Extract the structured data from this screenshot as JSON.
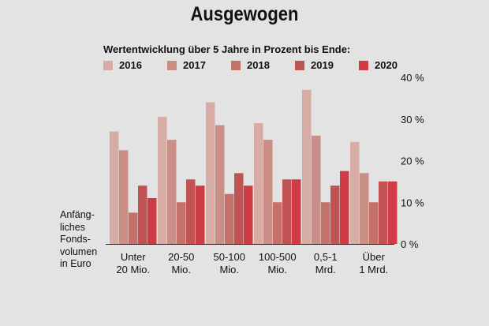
{
  "chart_data": {
    "type": "bar",
    "title": "Ausgewogen",
    "subtitle": "Wertentwicklung über 5 Jahre in Prozent bis Ende:",
    "ylabel_lines": [
      "Anfäng-",
      "liches",
      "Fonds-",
      "volumen",
      "in Euro"
    ],
    "categories": [
      [
        "Unter",
        "20 Mio."
      ],
      [
        "20-50",
        "Mio."
      ],
      [
        "50-100",
        "Mio."
      ],
      [
        "100-500",
        "Mio."
      ],
      [
        "0,5-1",
        "Mrd."
      ],
      [
        "Über",
        "1 Mrd."
      ]
    ],
    "series": [
      {
        "name": "2016",
        "values": [
          27,
          30.5,
          34,
          29,
          37,
          24.5
        ]
      },
      {
        "name": "2017",
        "values": [
          22.5,
          25,
          28.5,
          25,
          26,
          17
        ]
      },
      {
        "name": "2018",
        "values": [
          7.5,
          10,
          12,
          10,
          10,
          10
        ]
      },
      {
        "name": "2019",
        "values": [
          14,
          15.5,
          17,
          15.5,
          14,
          15
        ]
      },
      {
        "name": "2020",
        "values": [
          11,
          14,
          14,
          15.5,
          17.5,
          15
        ]
      }
    ],
    "ylim": [
      0,
      40
    ],
    "yticks": [
      "40 %",
      "30 %",
      "20 %",
      "10 %",
      "0 %"
    ],
    "ytick_values": [
      40,
      30,
      20,
      10,
      0
    ],
    "y_axis_position": "right",
    "legend_position": "top",
    "grid": false
  },
  "colors": {
    "series": [
      "#d7aca4",
      "#c98e85",
      "#c4716a",
      "#c05455",
      "#cf3c45"
    ],
    "background": "#e3e3e3"
  }
}
